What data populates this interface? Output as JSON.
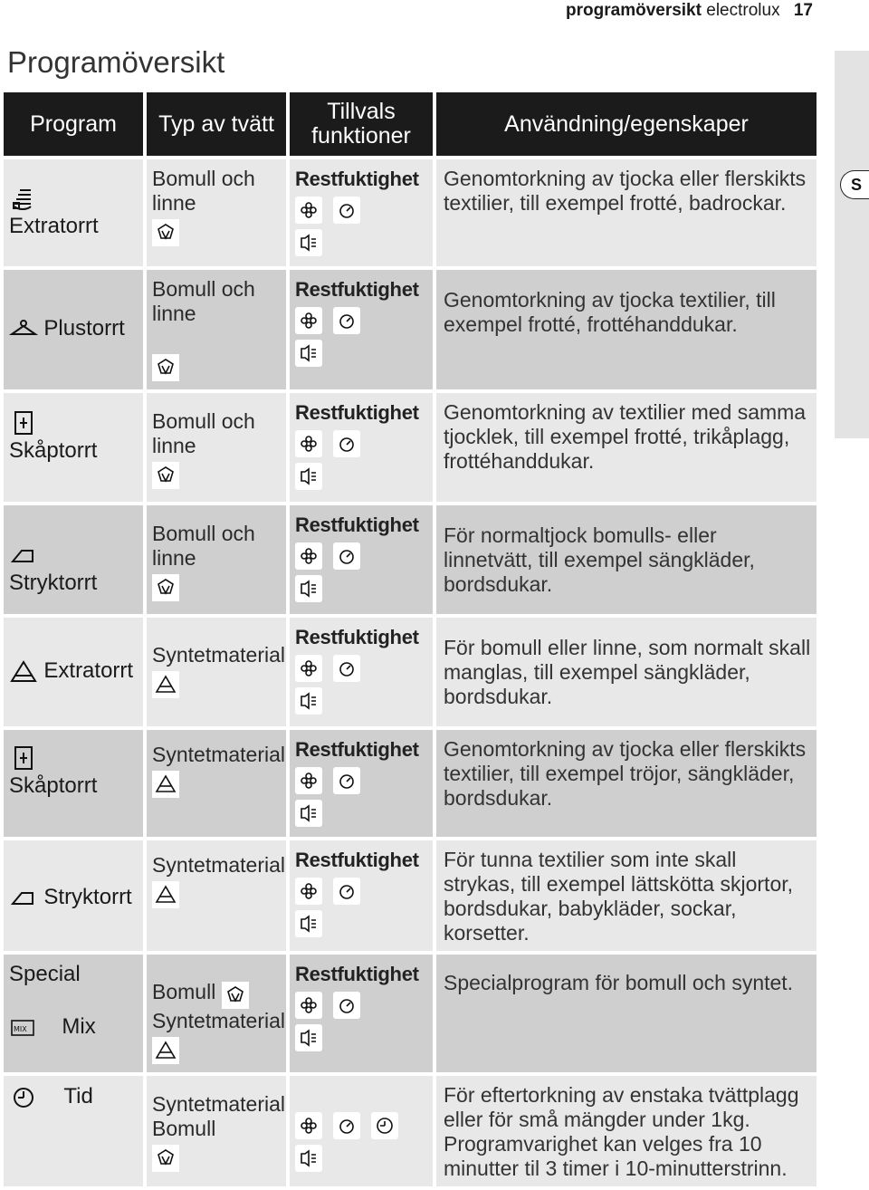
{
  "header": {
    "section": "programöversikt",
    "brand": "electrolux",
    "page_number": "17"
  },
  "title": "Programöversikt",
  "side_tab": {
    "language": "S"
  },
  "columns": [
    "Program",
    "Typ av tvätt",
    "Tillvals funktioner",
    "Användning/egenskaper"
  ],
  "rows": [
    {
      "program": "Extratorrt",
      "program_icon": "extra-dry-cotton-icon",
      "wash_type": "Bomull och linne",
      "fabric_icon": "cotton-icon",
      "function_label": "Restfuktighet",
      "usage": "Genomtorkning av tjocka eller flerskikts textilier, till exempel frotté, badrockar."
    },
    {
      "program": "Plustorrt",
      "program_icon": "hanger-icon",
      "wash_type": "Bomull och linne",
      "fabric_icon": "cotton-icon",
      "function_label": "Restfuktighet",
      "usage": "Genomtorkning av tjocka textilier, till exempel frotté, frottéhanddukar."
    },
    {
      "program": "Skåptorrt",
      "program_icon": "cupboard-icon",
      "wash_type": "Bomull och linne",
      "fabric_icon": "cotton-icon",
      "function_label": "Restfuktighet",
      "usage": "Genomtorkning av textilier med samma tjocklek, till exempel frotté, trikåplagg, frottéhanddukar."
    },
    {
      "program": "Stryktorrt",
      "program_icon": "iron-icon",
      "wash_type": "Bomull och linne",
      "fabric_icon": "cotton-icon",
      "function_label": "Restfuktighet",
      "usage": "För normaltjock bomulls- eller linnetvätt, till exempel sängkläder, bordsdukar."
    },
    {
      "program": "Extratorrt",
      "program_icon": "extra-dry-synthetic-icon",
      "wash_type": "Syntetmaterial",
      "fabric_icon": "synthetic-icon",
      "function_label": "Restfuktighet",
      "usage": "För bomull eller linne, som normalt skall manglas, till exempel sängkläder, bordsdukar."
    },
    {
      "program": "Skåptorrt",
      "program_icon": "cupboard-icon",
      "wash_type": "Syntetmaterial",
      "fabric_icon": "synthetic-icon",
      "function_label": "Restfuktighet",
      "usage": "Genomtorkning av tjocka eller flerskikts textilier, till exempel tröjor, sängkläder, bordsdukar."
    },
    {
      "program": "Stryktorrt",
      "program_icon": "iron-icon",
      "wash_type": "Syntetmaterial",
      "fabric_icon": "synthetic-icon",
      "function_label": "Restfuktighet",
      "usage": "För tunna textilier som inte skall strykas, till exempel lättskötta skjortor, bordsdukar, babykläder, sockar, korsetter."
    },
    {
      "program_line1": "Special",
      "program_line2": "Mix",
      "program_icon": "mix-icon",
      "wash_type_line1": "Bomull",
      "wash_type_line2": "Syntetmaterial",
      "function_label": "Restfuktighet",
      "usage": "Specialprogram för bomull och syntet."
    },
    {
      "program": "Tid",
      "program_icon": "clock-icon",
      "wash_type_line1": "Syntetmaterial",
      "wash_type_line2": "Bomull",
      "usage": "För eftertorkning av enstaka tvättplagg eller för små mängder under 1kg. Programvarighet kan velges fra 10 minutter til 3 timer i 10-minutterstrinn."
    }
  ]
}
